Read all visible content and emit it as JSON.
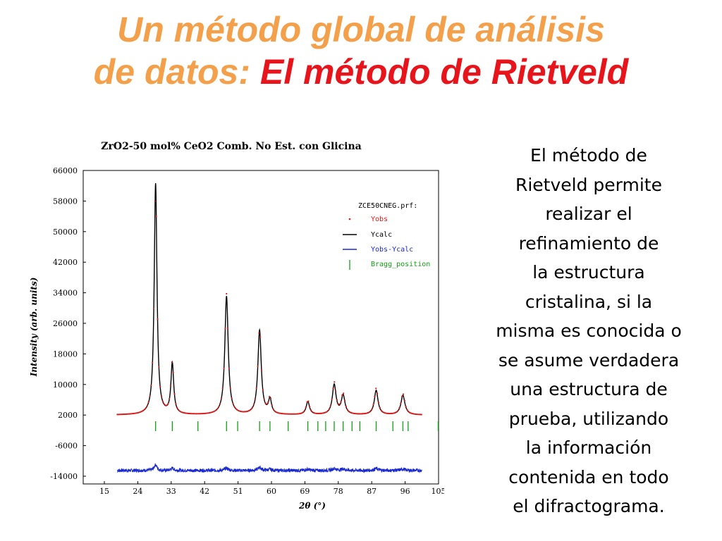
{
  "slide": {
    "title_line1": "Un método global de análisis",
    "title_line2a": "de datos: ",
    "title_line2b": "El método de Rietveld",
    "text_lines": [
      "El método de",
      "Rietveld permite",
      "realizar el",
      "refinamiento de",
      "la estructura",
      "cristalina, si la",
      "misma es conocida o",
      "se asume verdadera",
      "una estructura de",
      "prueba, utilizando",
      "la información",
      "contenida en todo",
      "el difractograma."
    ],
    "colors": {
      "title_orange": "#f4a04a",
      "title_red": "#e8141c"
    }
  },
  "chart_data": {
    "type": "line",
    "title": "ZrO2-50 mol% CeO2 Comb. No Est. con Glicina",
    "xlabel": "2θ (°)",
    "ylabel": "Intensity (arb. units)",
    "xlim": [
      15,
      105
    ],
    "ylim": [
      -14000,
      66000
    ],
    "x_ticks": [
      15,
      24,
      33,
      42,
      51,
      60,
      69,
      78,
      87,
      96,
      105
    ],
    "y_ticks": [
      -14000,
      -6000,
      2000,
      10000,
      18000,
      26000,
      34000,
      42000,
      50000,
      58000,
      66000
    ],
    "grid": false,
    "legend_position": "top-right",
    "legend_header": "ZCE50CNEG.prf:",
    "x_range": [
      18.5,
      100.5
    ],
    "background": 2000,
    "peaks": [
      {
        "x": 28.8,
        "height": 60500,
        "obs_height": 62000,
        "width": 0.45
      },
      {
        "x": 33.3,
        "height": 13200,
        "obs_height": 13800,
        "width": 0.45
      },
      {
        "x": 47.9,
        "height": 31000,
        "obs_height": 31600,
        "width": 0.55
      },
      {
        "x": 56.8,
        "height": 22000,
        "obs_height": 22800,
        "width": 0.55
      },
      {
        "x": 59.6,
        "height": 3800,
        "obs_height": 4100,
        "width": 0.5
      },
      {
        "x": 69.8,
        "height": 3400,
        "obs_height": 3700,
        "width": 0.55
      },
      {
        "x": 76.9,
        "height": 7800,
        "obs_height": 8300,
        "width": 0.6
      },
      {
        "x": 79.3,
        "height": 4900,
        "obs_height": 5300,
        "width": 0.6
      },
      {
        "x": 88.2,
        "height": 6400,
        "obs_height": 6900,
        "width": 0.6
      },
      {
        "x": 95.4,
        "height": 5100,
        "obs_height": 5500,
        "width": 0.65
      }
    ],
    "bragg_positions": [
      28.8,
      33.3,
      40.2,
      47.9,
      50.9,
      56.8,
      59.6,
      64.5,
      69.8,
      72.5,
      74.6,
      76.9,
      79.3,
      81.7,
      83.8,
      88.2,
      92.7,
      95.4,
      96.8,
      104.9
    ],
    "difference_offset": -12500,
    "series": [
      {
        "name": "Yobs",
        "color": "#e01818",
        "style": "dots"
      },
      {
        "name": "Ycalc",
        "color": "#000000",
        "style": "line"
      },
      {
        "name": "Yobs-Ycalc",
        "color": "#1a2ad0",
        "style": "line"
      },
      {
        "name": "Bragg_position",
        "color": "#12a012",
        "style": "ticks"
      }
    ]
  }
}
